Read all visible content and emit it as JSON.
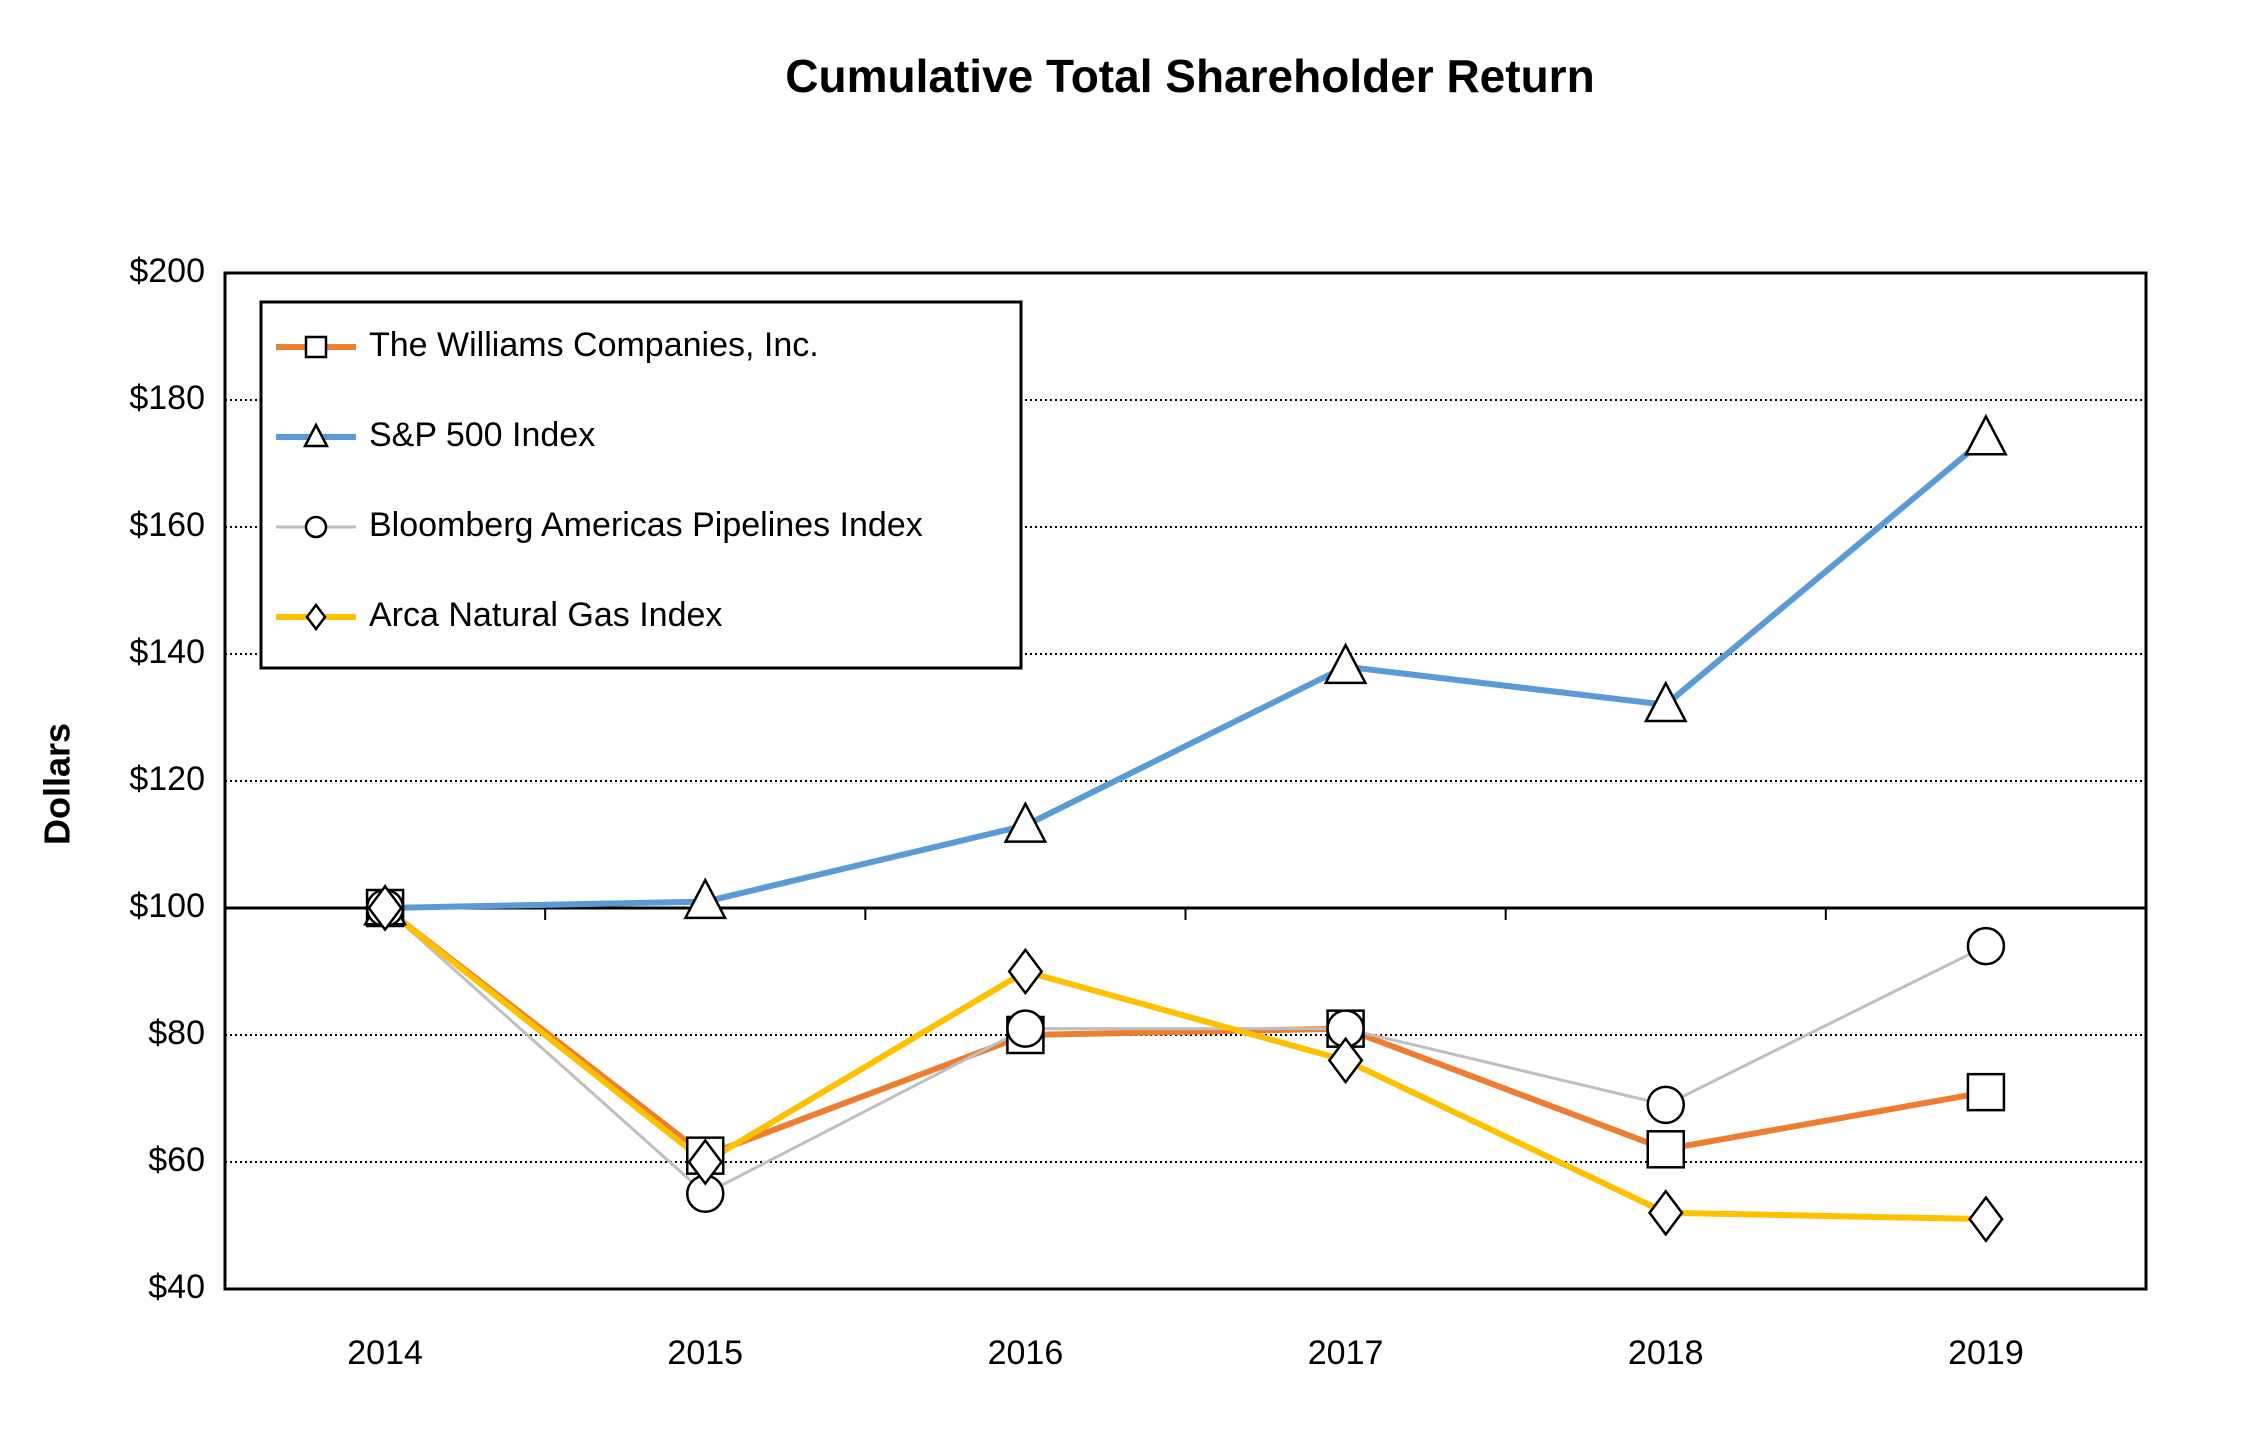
{
  "chart_data": {
    "type": "line",
    "title": "Cumulative Total Shareholder Return",
    "y_label": "Dollars",
    "categories": [
      "2014",
      "2015",
      "2016",
      "2017",
      "2018",
      "2019"
    ],
    "series": [
      {
        "name": "The Williams Companies, Inc.",
        "color": "#ed7d31",
        "marker": "square",
        "values": [
          100,
          61,
          80,
          81,
          62,
          71
        ]
      },
      {
        "name": "S&P 500 Index",
        "color": "#5b9bd5",
        "marker": "triangle",
        "values": [
          100,
          101,
          113,
          138,
          132,
          174
        ]
      },
      {
        "name": "Bloomberg Americas Pipelines Index",
        "color": "#bfbfbf",
        "marker": "circle",
        "values": [
          100,
          55,
          81,
          81,
          69,
          94
        ]
      },
      {
        "name": "Arca Natural Gas Index",
        "color": "#ffc000",
        "marker": "diamond",
        "values": [
          100,
          60,
          90,
          76,
          52,
          51
        ]
      }
    ],
    "ylim": [
      40,
      200
    ],
    "yticks": [
      {
        "value": 40,
        "label": "$40"
      },
      {
        "value": 60,
        "label": "$60"
      },
      {
        "value": 80,
        "label": "$80"
      },
      {
        "value": 100,
        "label": "$100"
      },
      {
        "value": 120,
        "label": "$120"
      },
      {
        "value": 140,
        "label": "$140"
      },
      {
        "value": 160,
        "label": "$160"
      },
      {
        "value": 180,
        "label": "$180"
      },
      {
        "value": 200,
        "label": "$200"
      }
    ],
    "baseline": 100,
    "grid": true,
    "legend": "upper left"
  }
}
